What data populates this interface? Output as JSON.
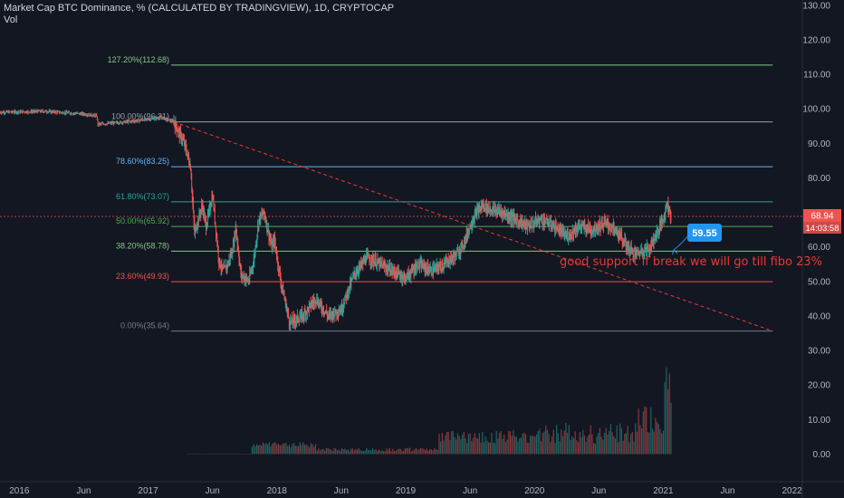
{
  "header": {
    "title": "Market Cap BTC Dominance, % (CALCULATED BY TRADINGVIEW), 1D, CRYPTOCAP",
    "vol_label": "Vol"
  },
  "price_tag": {
    "value": "68.94",
    "countdown": "14:03:58",
    "color": "#ef5350"
  },
  "callout": {
    "value": "59.55",
    "color": "#2196f3"
  },
  "annotation": {
    "text": "good support if break we will go till fibo 23%",
    "color": "#e53935"
  },
  "colors": {
    "background": "#131722",
    "up": "#26a69a",
    "down": "#ef5350",
    "trendline": "#e53935"
  },
  "chart_data": {
    "type": "line",
    "title": "Market Cap BTC Dominance, % (CALCULATED BY TRADINGVIEW), 1D, CRYPTOCAP",
    "x_ticks": [
      "2016",
      "Jun",
      "2017",
      "Jun",
      "2018",
      "Jun",
      "2019",
      "Jun",
      "2020",
      "Jun",
      "2021",
      "Jun",
      "2022"
    ],
    "y_ticks": [
      "130.00",
      "120.00",
      "110.00",
      "100.00",
      "90.00",
      "80.00",
      "70.00",
      "60.00",
      "50.00",
      "40.00",
      "30.00",
      "20.00",
      "10.00",
      "0.00"
    ],
    "ylim": [
      -8,
      131
    ],
    "xlim": [
      2015.85,
      2022.08
    ],
    "series": [
      {
        "x": [
          2015.85,
          2016.2,
          2016.5,
          2016.6,
          2016.61,
          2016.9,
          2017.1,
          2017.2,
          2017.28,
          2017.33,
          2017.36,
          2017.42,
          2017.45,
          2017.5,
          2017.55,
          2017.58,
          2017.62,
          2017.66,
          2017.68,
          2017.72,
          2017.78,
          2017.82,
          2017.86,
          2017.9,
          2017.93,
          2017.96,
          2017.98,
          2018.03,
          2018.1,
          2018.2,
          2018.3,
          2018.4,
          2018.5,
          2018.55,
          2018.6,
          2018.7,
          2018.8,
          2018.9,
          2019.0,
          2019.1,
          2019.2,
          2019.3,
          2019.4,
          2019.45,
          2019.5,
          2019.55,
          2019.6,
          2019.65,
          2019.75,
          2019.85,
          2019.95,
          2020.05,
          2020.15,
          2020.25,
          2020.35,
          2020.45,
          2020.55,
          2020.65,
          2020.72,
          2020.78,
          2020.85,
          2020.9,
          2020.95,
          2021.0,
          2021.03,
          2021.06
        ],
        "values": [
          99,
          99.3,
          98.5,
          98,
          95.5,
          96.5,
          97.5,
          96.2,
          90,
          83,
          64,
          72,
          66,
          75,
          56,
          53,
          55,
          60,
          66,
          52,
          50,
          56,
          68,
          70,
          65,
          60,
          62,
          50,
          38,
          40,
          45,
          40,
          42,
          47,
          52,
          57,
          55,
          53,
          51,
          55,
          53,
          55,
          58,
          61,
          66,
          70,
          72,
          71,
          70,
          68,
          66,
          68,
          66,
          63,
          66,
          65,
          67,
          64,
          60,
          58,
          59,
          60,
          64,
          68,
          73,
          68.94
        ]
      }
    ],
    "fibonacci": [
      {
        "label": "127.20%(112.68)",
        "value": 112.68,
        "color": "#81c784"
      },
      {
        "label": "100.00%(96.21)",
        "value": 96.21,
        "color": "#9aa0a6"
      },
      {
        "label": "78.60%(83.25)",
        "value": 83.25,
        "color": "#64b5f6"
      },
      {
        "label": "61.80%(73.07)",
        "value": 73.07,
        "color": "#26a69a"
      },
      {
        "label": "50.00%(65.92)",
        "value": 65.92,
        "color": "#4caf50"
      },
      {
        "label": "38.20%(58.78)",
        "value": 58.78,
        "color": "#81c784"
      },
      {
        "label": "23.60%(49.93)",
        "value": 49.93,
        "color": "#ef5350"
      },
      {
        "label": "0.00%(35.64)",
        "value": 35.64,
        "color": "#787b86"
      }
    ],
    "trendline": {
      "from": [
        2017.2,
        96.21
      ],
      "to": [
        2021.85,
        35.64
      ]
    },
    "volume_note": "volume bars along bottom rising sharply into 2021",
    "current_value": 68.94,
    "grid": false
  }
}
